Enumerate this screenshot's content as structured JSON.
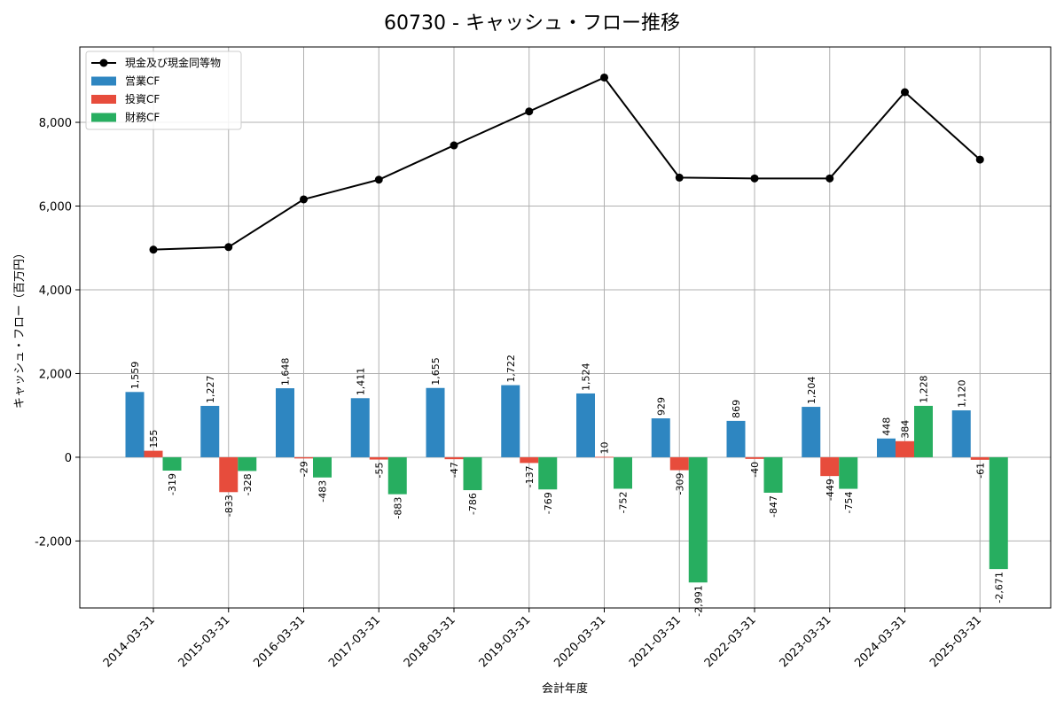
{
  "chart_data": {
    "type": "bar",
    "title": "60730 - キャッシュ・フロー推移",
    "xlabel": "会計年度",
    "ylabel": "キャッシュ・フロー（百万円）",
    "categories": [
      "2014-03-31",
      "2015-03-31",
      "2016-03-31",
      "2017-03-31",
      "2018-03-31",
      "2019-03-31",
      "2020-03-31",
      "2021-03-31",
      "2022-03-31",
      "2023-03-31",
      "2024-03-31",
      "2025-03-31"
    ],
    "ylim": [
      -3600,
      9800
    ],
    "yticks": [
      -2000,
      0,
      2000,
      4000,
      6000,
      8000
    ],
    "ytick_labels": [
      "-2,000",
      "0",
      "2,000",
      "4,000",
      "6,000",
      "8,000"
    ],
    "grid": true,
    "legend_position": "top-left",
    "series": [
      {
        "name": "営業CF",
        "kind": "bar",
        "color": "#2e86c1",
        "values": [
          1559,
          1227,
          1648,
          1411,
          1655,
          1722,
          1524,
          929,
          869,
          1204,
          448,
          1120
        ],
        "labels": [
          "1,559",
          "1,227",
          "1,648",
          "1,411",
          "1,655",
          "1,722",
          "1,524",
          "929",
          "869",
          "1,204",
          "448",
          "1,120"
        ]
      },
      {
        "name": "投資CF",
        "kind": "bar",
        "color": "#e74c3c",
        "values": [
          155,
          -833,
          -29,
          -55,
          -47,
          -137,
          10,
          -309,
          -40,
          -449,
          384,
          -61
        ],
        "labels": [
          "155",
          "-833",
          "-29",
          "-55",
          "-47",
          "-137",
          "10",
          "-309",
          "-40",
          "-449",
          "384",
          "-61"
        ]
      },
      {
        "name": "財務CF",
        "kind": "bar",
        "color": "#27ae60",
        "values": [
          -319,
          -328,
          -483,
          -883,
          -786,
          -769,
          -752,
          -2991,
          -847,
          -754,
          1228,
          -2671
        ],
        "labels": [
          "-319",
          "-328",
          "-483",
          "-883",
          "-786",
          "-769",
          "-752",
          "-2,991",
          "-847",
          "-754",
          "1,228",
          "-2,671"
        ]
      },
      {
        "name": "現金及び現金同等物",
        "kind": "line",
        "color": "#000000",
        "values": [
          4960,
          5020,
          6160,
          6630,
          7450,
          8260,
          9070,
          6680,
          6660,
          6660,
          8720,
          7110
        ]
      }
    ]
  }
}
